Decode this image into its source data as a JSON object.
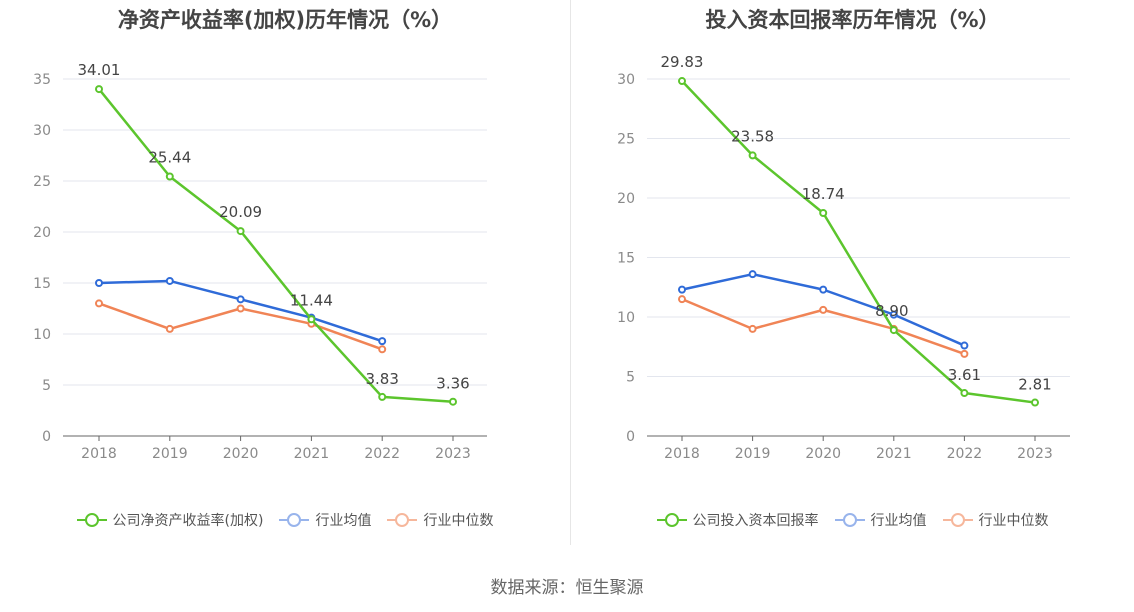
{
  "source": "数据来源：恒生聚源",
  "chart_data": [
    {
      "type": "line",
      "title": "净资产收益率(加权)历年情况（%）",
      "categories": [
        "2018",
        "2019",
        "2020",
        "2021",
        "2022",
        "2023"
      ],
      "ylim": [
        0,
        35
      ],
      "yticks": [
        0,
        5,
        10,
        15,
        20,
        25,
        30,
        35
      ],
      "grid": true,
      "series": [
        {
          "name": "公司净资产收益率(加权)",
          "color": "#5cc52d",
          "values": [
            34.01,
            25.44,
            20.09,
            11.44,
            3.83,
            3.36
          ],
          "labels": [
            "34.01",
            "25.44",
            "20.09",
            "11.44",
            "3.83",
            "3.36"
          ]
        },
        {
          "name": "行业均值",
          "color": "#2f6bd8",
          "values": [
            15.0,
            15.2,
            13.4,
            11.6,
            9.3,
            null
          ]
        },
        {
          "name": "行业中位数",
          "color": "#f08456",
          "values": [
            13.0,
            10.5,
            12.5,
            11.0,
            8.5,
            null
          ]
        }
      ]
    },
    {
      "type": "line",
      "title": "投入资本回报率历年情况（%）",
      "categories": [
        "2018",
        "2019",
        "2020",
        "2021",
        "2022",
        "2023"
      ],
      "ylim": [
        0,
        30
      ],
      "yticks": [
        0,
        5,
        10,
        15,
        20,
        25,
        30
      ],
      "grid": true,
      "series": [
        {
          "name": "公司投入资本回报率",
          "color": "#5cc52d",
          "values": [
            29.83,
            23.58,
            18.74,
            8.9,
            3.61,
            2.81
          ],
          "labels": [
            "29.83",
            "23.58",
            "18.74",
            "8.90",
            "3.61",
            "2.81"
          ]
        },
        {
          "name": "行业均值",
          "color": "#2f6bd8",
          "values": [
            12.3,
            13.6,
            12.3,
            10.2,
            7.6,
            null
          ]
        },
        {
          "name": "行业中位数",
          "color": "#f08456",
          "values": [
            11.5,
            9.0,
            10.6,
            9.0,
            6.9,
            null
          ]
        }
      ]
    }
  ]
}
